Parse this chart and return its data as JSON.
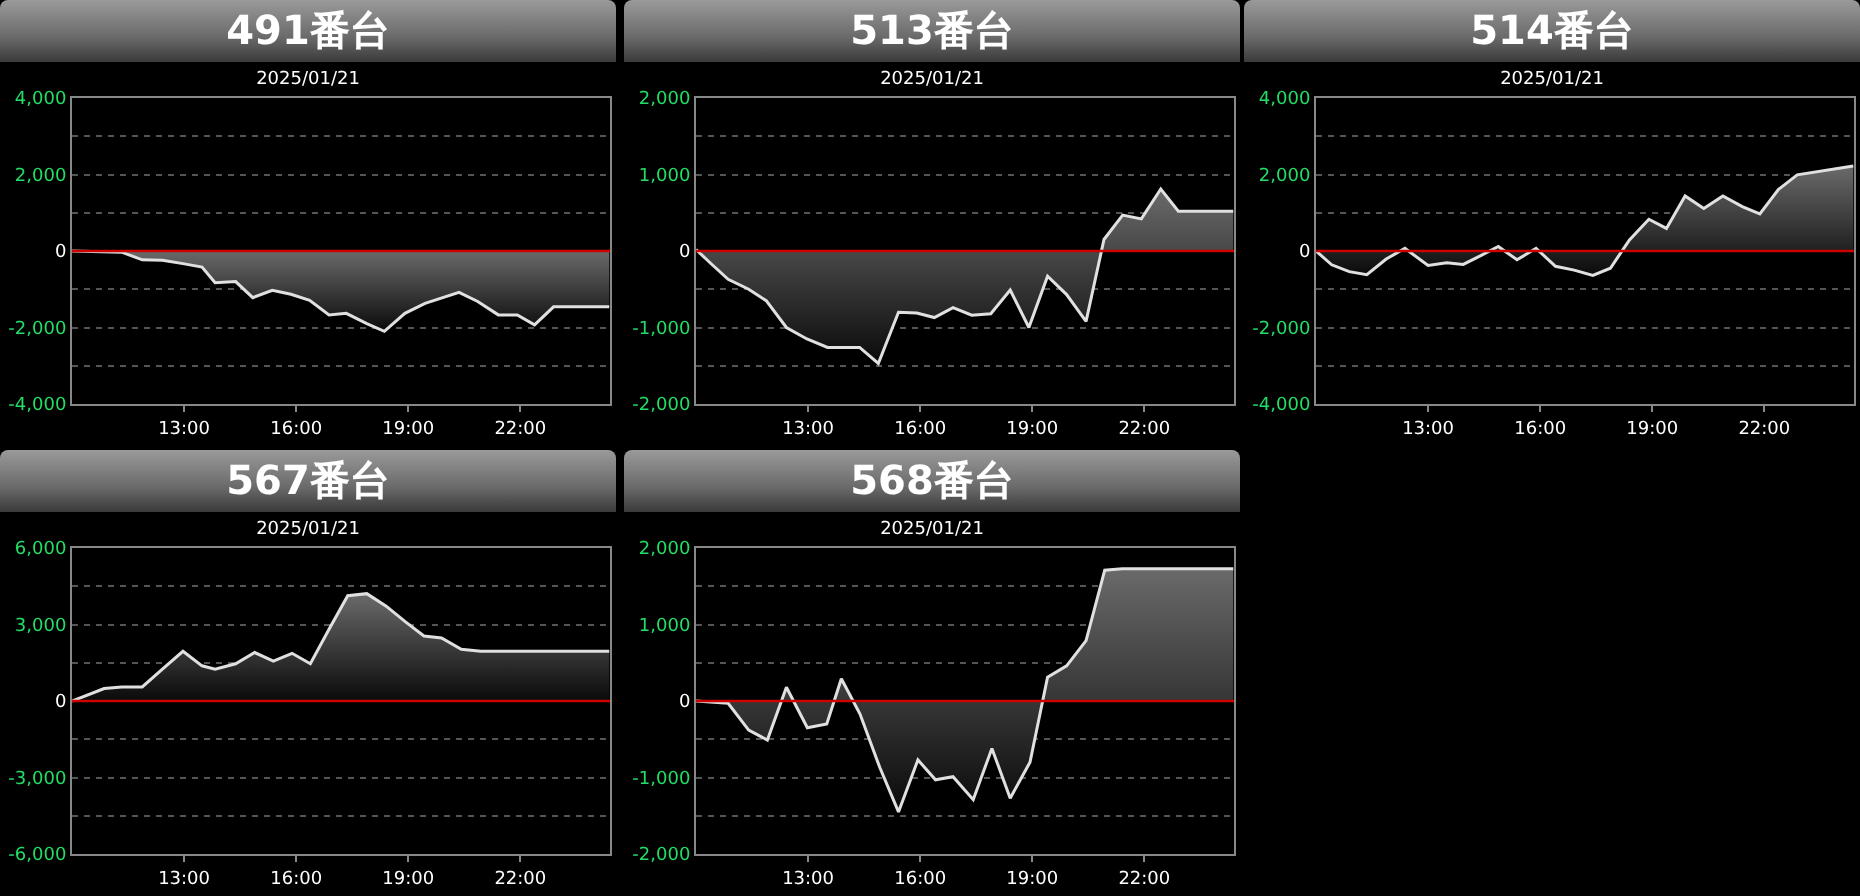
{
  "chart_data": [
    {
      "type": "area",
      "title": "491番台",
      "subtitle": "2025/01/21",
      "grid": "y",
      "xlim": [
        10,
        24.4
      ],
      "ylim": [
        -4000,
        4000
      ],
      "xticks": [
        {
          "value": 13,
          "label": "13:00"
        },
        {
          "value": 16,
          "label": "16:00"
        },
        {
          "value": 19,
          "label": "19:00"
        },
        {
          "value": 22,
          "label": "22:00"
        }
      ],
      "yticks": [
        {
          "value": -4000,
          "label": "-4,000"
        },
        {
          "value": -3000,
          "label": null
        },
        {
          "value": -2000,
          "label": "-2,000"
        },
        {
          "value": -1000,
          "label": null
        },
        {
          "value": 0,
          "label": "0"
        },
        {
          "value": 1000,
          "label": null
        },
        {
          "value": 2000,
          "label": "2,000"
        },
        {
          "value": 3000,
          "label": null
        },
        {
          "value": 4000,
          "label": "4,000"
        }
      ],
      "ref_lines": [
        {
          "axis": "y",
          "value": 0,
          "color": "#cc0000"
        }
      ],
      "series": [
        {
          "color": "#e0e0e0",
          "x": [
            10,
            11.33,
            11.88,
            12.42,
            12.97,
            13.48,
            13.83,
            14.38,
            14.84,
            15.36,
            15.86,
            16.36,
            16.88,
            17.34,
            17.89,
            18.36,
            18.91,
            19.45,
            20.36,
            20.86,
            21.41,
            21.92,
            22.38,
            22.89,
            24.38
          ],
          "values": [
            0,
            -30,
            -230,
            -240,
            -330,
            -420,
            -830,
            -800,
            -1220,
            -1030,
            -1130,
            -1290,
            -1670,
            -1630,
            -1900,
            -2100,
            -1630,
            -1370,
            -1080,
            -1320,
            -1670,
            -1670,
            -1930,
            -1460,
            -1460
          ]
        }
      ]
    },
    {
      "type": "area",
      "title": "513番台",
      "subtitle": "2025/01/21",
      "grid": "y",
      "xlim": [
        10,
        24.4
      ],
      "ylim": [
        -2000,
        2000
      ],
      "xticks": [
        {
          "value": 13,
          "label": "13:00"
        },
        {
          "value": 16,
          "label": "16:00"
        },
        {
          "value": 19,
          "label": "19:00"
        },
        {
          "value": 22,
          "label": "22:00"
        }
      ],
      "yticks": [
        {
          "value": -2000,
          "label": "-2,000"
        },
        {
          "value": -1500,
          "label": null
        },
        {
          "value": -1000,
          "label": "-1,000"
        },
        {
          "value": -500,
          "label": null
        },
        {
          "value": 0,
          "label": "0"
        },
        {
          "value": 500,
          "label": null
        },
        {
          "value": 1000,
          "label": "1,000"
        },
        {
          "value": 1500,
          "label": null
        },
        {
          "value": 2000,
          "label": "2,000"
        }
      ],
      "ref_lines": [
        {
          "axis": "y",
          "value": 0,
          "color": "#cc0000"
        }
      ],
      "series": [
        {
          "color": "#e0e0e0",
          "x": [
            10,
            10.39,
            10.86,
            11.41,
            11.88,
            12.42,
            12.97,
            13.52,
            14.38,
            14.88,
            15.42,
            15.91,
            16.38,
            16.88,
            17.38,
            17.89,
            18.41,
            18.91,
            19.41,
            19.92,
            20.44,
            20.92,
            21.42,
            21.92,
            22.44,
            22.91,
            24.38
          ],
          "values": [
            20,
            -160,
            -370,
            -500,
            -650,
            -1000,
            -1150,
            -1260,
            -1260,
            -1470,
            -800,
            -810,
            -870,
            -740,
            -840,
            -820,
            -510,
            -1000,
            -330,
            -570,
            -920,
            150,
            470,
            420,
            810,
            520,
            520
          ]
        }
      ]
    },
    {
      "type": "area",
      "title": "514番台",
      "subtitle": "2025/01/21",
      "grid": "y",
      "xlim": [
        10,
        24.4
      ],
      "ylim": [
        -4000,
        4000
      ],
      "xticks": [
        {
          "value": 13,
          "label": "13:00"
        },
        {
          "value": 16,
          "label": "16:00"
        },
        {
          "value": 19,
          "label": "19:00"
        },
        {
          "value": 22,
          "label": "22:00"
        }
      ],
      "yticks": [
        {
          "value": -4000,
          "label": "-4,000"
        },
        {
          "value": -3000,
          "label": null
        },
        {
          "value": -2000,
          "label": "-2,000"
        },
        {
          "value": -1000,
          "label": null
        },
        {
          "value": 0,
          "label": "0"
        },
        {
          "value": 1000,
          "label": null
        },
        {
          "value": 2000,
          "label": "2,000"
        },
        {
          "value": 3000,
          "label": null
        },
        {
          "value": 4000,
          "label": "4,000"
        }
      ],
      "ref_lines": [
        {
          "axis": "y",
          "value": 0,
          "color": "#cc0000"
        }
      ],
      "series": [
        {
          "color": "#e0e0e0",
          "x": [
            10,
            10.42,
            10.89,
            11.36,
            11.88,
            12.38,
            13,
            13.5,
            13.94,
            14.41,
            14.88,
            15.38,
            15.89,
            16.41,
            16.91,
            17.41,
            17.88,
            18.39,
            18.91,
            19.38,
            19.88,
            20.38,
            20.89,
            21.41,
            21.88,
            22.38,
            22.88,
            24.38
          ],
          "values": [
            0,
            -360,
            -540,
            -620,
            -210,
            70,
            -380,
            -310,
            -350,
            -120,
            120,
            -230,
            70,
            -400,
            -500,
            -640,
            -450,
            290,
            830,
            590,
            1440,
            1110,
            1440,
            1160,
            970,
            1610,
            1990,
            2220
          ]
        }
      ]
    },
    {
      "type": "area",
      "title": "567番台",
      "subtitle": "2025/01/21",
      "grid": "y",
      "xlim": [
        10,
        24.4
      ],
      "ylim": [
        -6000,
        6000
      ],
      "xticks": [
        {
          "value": 13,
          "label": "13:00"
        },
        {
          "value": 16,
          "label": "16:00"
        },
        {
          "value": 19,
          "label": "19:00"
        },
        {
          "value": 22,
          "label": "22:00"
        }
      ],
      "yticks": [
        {
          "value": -6000,
          "label": "-6,000"
        },
        {
          "value": -4500,
          "label": null
        },
        {
          "value": -3000,
          "label": "-3,000"
        },
        {
          "value": -1500,
          "label": null
        },
        {
          "value": 0,
          "label": "0"
        },
        {
          "value": 1500,
          "label": null
        },
        {
          "value": 3000,
          "label": "3,000"
        },
        {
          "value": 4500,
          "label": null
        },
        {
          "value": 6000,
          "label": "6,000"
        }
      ],
      "ref_lines": [
        {
          "axis": "y",
          "value": 0,
          "color": "#cc0000"
        }
      ],
      "series": [
        {
          "color": "#e0e0e0",
          "x": [
            10,
            10.86,
            11.33,
            11.88,
            12.42,
            12.97,
            13.48,
            13.83,
            14.38,
            14.89,
            15.39,
            15.89,
            16.38,
            16.88,
            17.38,
            17.89,
            18.41,
            18.91,
            19.42,
            19.89,
            20.42,
            20.94,
            24.38
          ],
          "values": [
            0,
            490,
            550,
            550,
            1250,
            1950,
            1380,
            1250,
            1460,
            1900,
            1560,
            1870,
            1460,
            2810,
            4130,
            4210,
            3720,
            3120,
            2550,
            2470,
            2030,
            1950,
            1950
          ]
        }
      ]
    },
    {
      "type": "area",
      "title": "568番台",
      "subtitle": "2025/01/21",
      "grid": "y",
      "xlim": [
        10,
        24.4
      ],
      "ylim": [
        -2000,
        2000
      ],
      "xticks": [
        {
          "value": 13,
          "label": "13:00"
        },
        {
          "value": 16,
          "label": "16:00"
        },
        {
          "value": 19,
          "label": "19:00"
        },
        {
          "value": 22,
          "label": "22:00"
        }
      ],
      "yticks": [
        {
          "value": -2000,
          "label": "-2,000"
        },
        {
          "value": -1500,
          "label": null
        },
        {
          "value": -1000,
          "label": "-1,000"
        },
        {
          "value": -500,
          "label": null
        },
        {
          "value": 0,
          "label": "0"
        },
        {
          "value": 500,
          "label": null
        },
        {
          "value": 1000,
          "label": "1,000"
        },
        {
          "value": 1500,
          "label": null
        },
        {
          "value": 2000,
          "label": "2,000"
        }
      ],
      "ref_lines": [
        {
          "axis": "y",
          "value": 0,
          "color": "#cc0000"
        }
      ],
      "series": [
        {
          "color": "#e0e0e0",
          "x": [
            10,
            10.86,
            11.41,
            11.91,
            12.42,
            12.98,
            13.5,
            13.89,
            14.39,
            14.92,
            15.42,
            15.94,
            16.41,
            16.88,
            17.42,
            17.92,
            18.41,
            18.94,
            19.41,
            19.92,
            20.44,
            20.94,
            21.41,
            24.38
          ],
          "values": [
            0,
            -30,
            -380,
            -510,
            180,
            -350,
            -300,
            290,
            -170,
            -870,
            -1450,
            -770,
            -1030,
            -990,
            -1290,
            -620,
            -1270,
            -800,
            310,
            460,
            790,
            1710,
            1730,
            1730
          ]
        }
      ]
    }
  ]
}
